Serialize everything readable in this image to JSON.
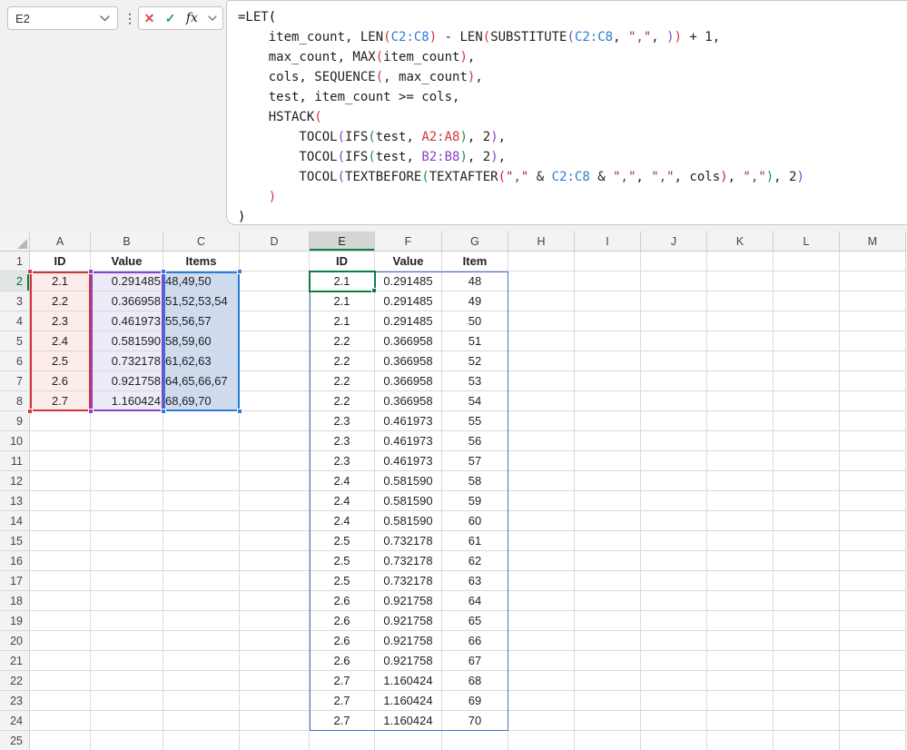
{
  "name_box": {
    "value": "E2"
  },
  "formula_buttons": {
    "cancel": "✕",
    "enter": "✓",
    "fx": "fx"
  },
  "formula": {
    "token_colors": {
      "t": "#1f1f1f",
      "p1": "#000000",
      "p2": "#d13438",
      "p3": "#8743cc",
      "p4": "#149641",
      "p5": "#e3008c",
      "ra": "#d13438",
      "rb": "#8743cc",
      "rc": "#2b7cd3",
      "s": "#8a3b34"
    },
    "lines": [
      [
        [
          "t",
          "=LET"
        ],
        [
          "p1",
          "("
        ]
      ],
      [
        [
          "t",
          "    item_count, LEN"
        ],
        [
          "p2",
          "("
        ],
        [
          "rc",
          "C2:C8"
        ],
        [
          "p2",
          ")"
        ],
        [
          "t",
          " - LEN"
        ],
        [
          "p2",
          "("
        ],
        [
          "t",
          "SUBSTITUTE"
        ],
        [
          "p3",
          "("
        ],
        [
          "rc",
          "C2:C8"
        ],
        [
          "t",
          ", "
        ],
        [
          "s",
          "\",\""
        ],
        [
          "t",
          ", "
        ],
        [
          "p3",
          ")"
        ],
        [
          "p2",
          ")"
        ],
        [
          "t",
          " + 1,"
        ]
      ],
      [
        [
          "t",
          "    max_count, MAX"
        ],
        [
          "p2",
          "("
        ],
        [
          "t",
          "item_count"
        ],
        [
          "p2",
          ")"
        ],
        [
          "t",
          ","
        ]
      ],
      [
        [
          "t",
          "    cols, SEQUENCE"
        ],
        [
          "p2",
          "("
        ],
        [
          "t",
          ", max_count"
        ],
        [
          "p2",
          ")"
        ],
        [
          "t",
          ","
        ]
      ],
      [
        [
          "t",
          "    test, item_count >= cols,"
        ]
      ],
      [
        [
          "t",
          "    HSTACK"
        ],
        [
          "p2",
          "("
        ]
      ],
      [
        [
          "t",
          "        TOCOL"
        ],
        [
          "p3",
          "("
        ],
        [
          "t",
          "IFS"
        ],
        [
          "p4",
          "("
        ],
        [
          "t",
          "test, "
        ],
        [
          "ra",
          "A2:A8"
        ],
        [
          "p4",
          ")"
        ],
        [
          "t",
          ", 2"
        ],
        [
          "p3",
          ")"
        ],
        [
          "t",
          ","
        ]
      ],
      [
        [
          "t",
          "        TOCOL"
        ],
        [
          "p3",
          "("
        ],
        [
          "t",
          "IFS"
        ],
        [
          "p4",
          "("
        ],
        [
          "t",
          "test, "
        ],
        [
          "rb",
          "B2:B8"
        ],
        [
          "p4",
          ")"
        ],
        [
          "t",
          ", 2"
        ],
        [
          "p3",
          ")"
        ],
        [
          "t",
          ","
        ]
      ],
      [
        [
          "t",
          "        TOCOL"
        ],
        [
          "p3",
          "("
        ],
        [
          "t",
          "TEXTBEFORE"
        ],
        [
          "p4",
          "("
        ],
        [
          "t",
          "TEXTAFTER"
        ],
        [
          "p5",
          "("
        ],
        [
          "s",
          "\",\""
        ],
        [
          "t",
          " & "
        ],
        [
          "rc",
          "C2:C8"
        ],
        [
          "t",
          " & "
        ],
        [
          "s",
          "\",\""
        ],
        [
          "t",
          ", "
        ],
        [
          "s",
          "\",\""
        ],
        [
          "t",
          ", cols"
        ],
        [
          "p5",
          ")"
        ],
        [
          "t",
          ", "
        ],
        [
          "s",
          "\",\""
        ],
        [
          "p4",
          ")"
        ],
        [
          "t",
          ", 2"
        ],
        [
          "p3",
          ")"
        ]
      ],
      [
        [
          "t",
          "    "
        ],
        [
          "p2",
          ")"
        ]
      ],
      [
        [
          "p1",
          ")"
        ]
      ]
    ]
  },
  "grid": {
    "col_letters": [
      "A",
      "B",
      "C",
      "D",
      "E",
      "F",
      "G",
      "H",
      "I",
      "J",
      "K",
      "L",
      "M"
    ],
    "row_count": 25,
    "selected_col": "E",
    "selected_row": 2,
    "active_cell": "E2",
    "left_table": {
      "headers": {
        "A": "ID",
        "B": "Value",
        "C": "Items"
      },
      "rows": [
        [
          "2.1",
          "0.291485",
          "48,49,50"
        ],
        [
          "2.2",
          "0.366958",
          "51,52,53,54"
        ],
        [
          "2.3",
          "0.461973",
          "55,56,57"
        ],
        [
          "2.4",
          "0.581590",
          "58,59,60"
        ],
        [
          "2.5",
          "0.732178",
          "61,62,63"
        ],
        [
          "2.6",
          "0.921758",
          "64,65,66,67"
        ],
        [
          "2.7",
          "1.160424",
          "68,69,70"
        ]
      ]
    },
    "output_table": {
      "headers": {
        "E": "ID",
        "F": "Value",
        "G": "Item"
      },
      "rows": [
        [
          "2.1",
          "0.291485",
          "48"
        ],
        [
          "2.1",
          "0.291485",
          "49"
        ],
        [
          "2.1",
          "0.291485",
          "50"
        ],
        [
          "2.2",
          "0.366958",
          "51"
        ],
        [
          "2.2",
          "0.366958",
          "52"
        ],
        [
          "2.2",
          "0.366958",
          "53"
        ],
        [
          "2.2",
          "0.366958",
          "54"
        ],
        [
          "2.3",
          "0.461973",
          "55"
        ],
        [
          "2.3",
          "0.461973",
          "56"
        ],
        [
          "2.3",
          "0.461973",
          "57"
        ],
        [
          "2.4",
          "0.581590",
          "58"
        ],
        [
          "2.4",
          "0.581590",
          "59"
        ],
        [
          "2.4",
          "0.581590",
          "60"
        ],
        [
          "2.5",
          "0.732178",
          "61"
        ],
        [
          "2.5",
          "0.732178",
          "62"
        ],
        [
          "2.5",
          "0.732178",
          "63"
        ],
        [
          "2.6",
          "0.921758",
          "64"
        ],
        [
          "2.6",
          "0.921758",
          "65"
        ],
        [
          "2.6",
          "0.921758",
          "66"
        ],
        [
          "2.6",
          "0.921758",
          "67"
        ],
        [
          "2.7",
          "1.160424",
          "68"
        ],
        [
          "2.7",
          "1.160424",
          "69"
        ],
        [
          "2.7",
          "1.160424",
          "70"
        ]
      ]
    },
    "highlight_ranges": {
      "red": {
        "range": "A2:A8",
        "border": "#d13438",
        "fill": "#fcecea"
      },
      "purple": {
        "range": "B2:B8",
        "border": "#8743cc",
        "fill": "#efeaf8"
      },
      "blue": {
        "range": "C2:C8",
        "border": "#2b7cd3",
        "fill": "#cfdbef"
      }
    },
    "spill_border_color": "#4472c4",
    "active_cell_color": "#107c41"
  }
}
